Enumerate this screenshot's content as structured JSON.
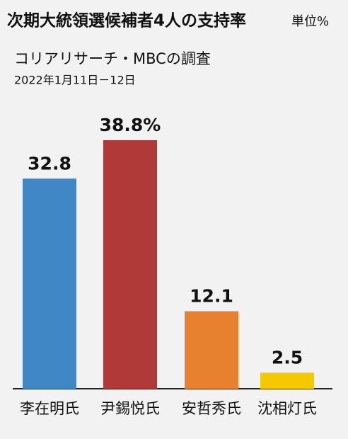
{
  "chart_data": {
    "type": "bar",
    "title": "次期大統領選候補者4人の支持率",
    "unit": "単位%",
    "subtitle": "コリアリサーチ・MBCの調査",
    "date": "2022年1月11日－12日",
    "categories": [
      "李在明氏",
      "尹錫悦氏",
      "安哲秀氏",
      "沈相灯氏"
    ],
    "values": [
      32.8,
      38.8,
      12.1,
      2.5
    ],
    "value_labels": [
      "32.8",
      "38.8%",
      "12.1",
      "2.5"
    ],
    "colors": [
      "#3f88c5",
      "#b03a37",
      "#e8812f",
      "#f6c800"
    ]
  }
}
